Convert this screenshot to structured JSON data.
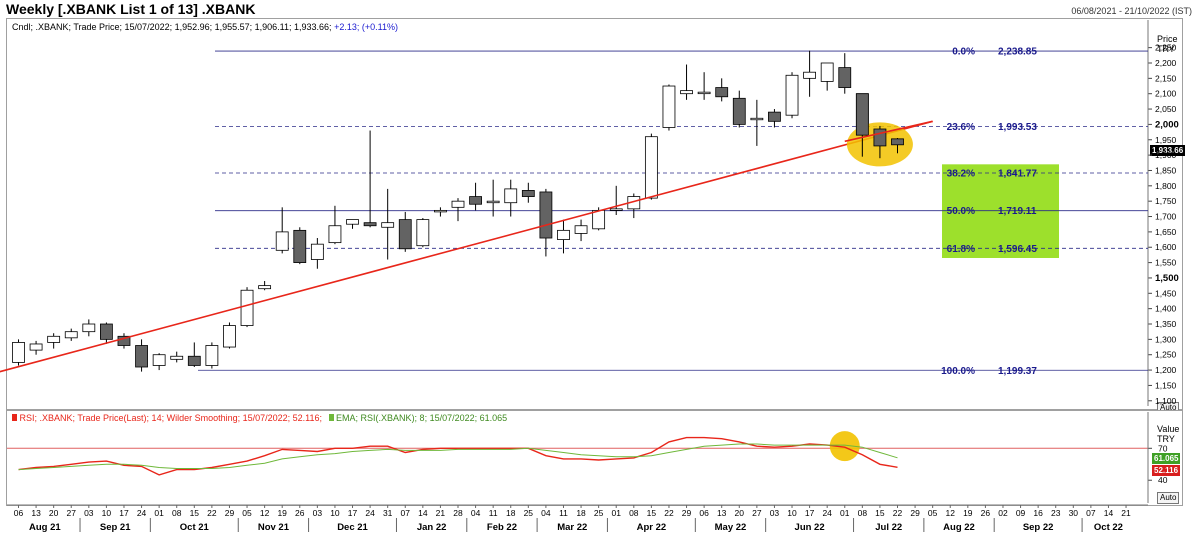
{
  "header": {
    "title": "Weekly [.XBANK List 1 of 13] .XBANK",
    "date_range": "06/08/2021 - 21/10/2022 (IST)"
  },
  "price_panel": {
    "legend_prefix": "Cndl; .XBANK; Trade Price; 15/07/2022; 1,952.96; 1,955.57; 1,906.11; 1,933.66;",
    "legend_change": "+2.13; (+0.11%)",
    "axis_title_line1": "Price",
    "axis_title_line2": "TRY",
    "current_price_label": "1,933.66",
    "auto_label": "Auto"
  },
  "rsi_panel": {
    "legend_rsi": "RSI; .XBANK; Trade Price(Last); 14; Wilder Smoothing; 15/07/2022; 52.116;",
    "legend_ema": "EMA; RSI(.XBANK); 8; 15/07/2022; 61.065",
    "axis_title_line1": "Value",
    "axis_title_line2": "TRY",
    "ema_value_label": "61.065",
    "rsi_value_label": "52.116",
    "auto_label": "Auto"
  },
  "colors": {
    "bull_candle": "#ffffff",
    "bear_candle": "#636363",
    "trendline": "#e8261a",
    "fib_label": "#1a1a8c",
    "fib_highlight": "#9de02c",
    "ellipse": "#f2c200",
    "rsi_line": "#e8261a",
    "ema_line": "#6fb83a",
    "rsi_ref_line": "#e06060"
  },
  "chart_data": [
    {
      "type": "candlestick",
      "title": "Weekly [.XBANK List 1 of 13] .XBANK",
      "ylabel": "Price TRY",
      "ylim": [
        1083,
        2340
      ],
      "y_ticks": [
        1100,
        1150,
        1200,
        1250,
        1300,
        1350,
        1400,
        1450,
        1500,
        1550,
        1600,
        1650,
        1700,
        1750,
        1800,
        1850,
        1900,
        1950,
        2000,
        2050,
        2100,
        2150,
        2200,
        2250
      ],
      "y_tick_labels": [
        "1,100",
        "1,150",
        "1,200",
        "1,250",
        "1,300",
        "1,350",
        "1,400",
        "1,450",
        "1,500",
        "1,550",
        "1,600",
        "1,650",
        "1,700",
        "1,750",
        "1,800",
        "1,850",
        "1,900",
        "1,950",
        "2,000",
        "2,050",
        "2,100",
        "2,150",
        "2,200",
        "2,250"
      ],
      "bold_y_ticks": [
        1500,
        2000
      ],
      "x_tick_labels": [
        "06",
        "13",
        "20",
        "27",
        "03",
        "10",
        "17",
        "24",
        "01",
        "08",
        "15",
        "22",
        "29",
        "05",
        "12",
        "19",
        "26",
        "03",
        "10",
        "17",
        "24",
        "31",
        "07",
        "14",
        "21",
        "28",
        "04",
        "11",
        "18",
        "25",
        "04",
        "11",
        "18",
        "25",
        "01",
        "08",
        "15",
        "22",
        "29",
        "06",
        "13",
        "20",
        "27",
        "03",
        "10",
        "17",
        "24",
        "01",
        "08",
        "15",
        "22",
        "29",
        "05",
        "12",
        "19",
        "26",
        "02",
        "09",
        "16",
        "23",
        "30",
        "07",
        "14",
        "21"
      ],
      "month_labels": [
        "Aug 21",
        "Sep 21",
        "Oct 21",
        "Nov 21",
        "Dec 21",
        "Jan 22",
        "Feb 22",
        "Mar 22",
        "Apr 22",
        "May 22",
        "Jun 22",
        "Jul 22",
        "Aug 22",
        "Sep 22",
        "Oct 22"
      ],
      "candles": [
        {
          "o": 1225,
          "h": 1300,
          "l": 1215,
          "c": 1290
        },
        {
          "o": 1265,
          "h": 1295,
          "l": 1250,
          "c": 1285
        },
        {
          "o": 1290,
          "h": 1320,
          "l": 1270,
          "c": 1310
        },
        {
          "o": 1305,
          "h": 1335,
          "l": 1295,
          "c": 1325
        },
        {
          "o": 1325,
          "h": 1365,
          "l": 1310,
          "c": 1350
        },
        {
          "o": 1350,
          "h": 1355,
          "l": 1285,
          "c": 1300
        },
        {
          "o": 1310,
          "h": 1320,
          "l": 1270,
          "c": 1280
        },
        {
          "o": 1280,
          "h": 1300,
          "l": 1195,
          "c": 1210
        },
        {
          "o": 1215,
          "h": 1255,
          "l": 1200,
          "c": 1250
        },
        {
          "o": 1235,
          "h": 1260,
          "l": 1225,
          "c": 1245
        },
        {
          "o": 1245,
          "h": 1290,
          "l": 1210,
          "c": 1215
        },
        {
          "o": 1215,
          "h": 1290,
          "l": 1205,
          "c": 1280
        },
        {
          "o": 1275,
          "h": 1355,
          "l": 1270,
          "c": 1345
        },
        {
          "o": 1345,
          "h": 1470,
          "l": 1340,
          "c": 1460
        },
        {
          "o": 1465,
          "h": 1490,
          "l": 1460,
          "c": 1475
        },
        {
          "o": 1590,
          "h": 1730,
          "l": 1580,
          "c": 1650
        },
        {
          "o": 1655,
          "h": 1665,
          "l": 1545,
          "c": 1550
        },
        {
          "o": 1560,
          "h": 1630,
          "l": 1530,
          "c": 1610
        },
        {
          "o": 1615,
          "h": 1735,
          "l": 1610,
          "c": 1670
        },
        {
          "o": 1675,
          "h": 1690,
          "l": 1660,
          "c": 1690
        },
        {
          "o": 1680,
          "h": 1980,
          "l": 1665,
          "c": 1670
        },
        {
          "o": 1665,
          "h": 1790,
          "l": 1560,
          "c": 1680
        },
        {
          "o": 1690,
          "h": 1715,
          "l": 1585,
          "c": 1595
        },
        {
          "o": 1605,
          "h": 1695,
          "l": 1600,
          "c": 1690
        },
        {
          "o": 1720,
          "h": 1730,
          "l": 1700,
          "c": 1720
        },
        {
          "o": 1730,
          "h": 1760,
          "l": 1685,
          "c": 1750
        },
        {
          "o": 1765,
          "h": 1810,
          "l": 1720,
          "c": 1740
        },
        {
          "o": 1745,
          "h": 1820,
          "l": 1700,
          "c": 1750
        },
        {
          "o": 1745,
          "h": 1820,
          "l": 1700,
          "c": 1790
        },
        {
          "o": 1785,
          "h": 1810,
          "l": 1745,
          "c": 1765
        },
        {
          "o": 1780,
          "h": 1790,
          "l": 1570,
          "c": 1630
        },
        {
          "o": 1625,
          "h": 1690,
          "l": 1580,
          "c": 1655
        },
        {
          "o": 1645,
          "h": 1690,
          "l": 1620,
          "c": 1670
        },
        {
          "o": 1660,
          "h": 1730,
          "l": 1655,
          "c": 1720
        },
        {
          "o": 1720,
          "h": 1800,
          "l": 1705,
          "c": 1725
        },
        {
          "o": 1725,
          "h": 1775,
          "l": 1695,
          "c": 1765
        },
        {
          "o": 1760,
          "h": 1970,
          "l": 1755,
          "c": 1960
        },
        {
          "o": 1990,
          "h": 2130,
          "l": 1980,
          "c": 2125
        },
        {
          "o": 2100,
          "h": 2195,
          "l": 2080,
          "c": 2110
        },
        {
          "o": 2105,
          "h": 2170,
          "l": 2080,
          "c": 2105
        },
        {
          "o": 2120,
          "h": 2150,
          "l": 2075,
          "c": 2090
        },
        {
          "o": 2085,
          "h": 2110,
          "l": 1990,
          "c": 2000
        },
        {
          "o": 2020,
          "h": 2080,
          "l": 1930,
          "c": 2020
        },
        {
          "o": 2040,
          "h": 2050,
          "l": 1990,
          "c": 2010
        },
        {
          "o": 2030,
          "h": 2170,
          "l": 2020,
          "c": 2160
        },
        {
          "o": 2150,
          "h": 2240,
          "l": 2090,
          "c": 2170
        },
        {
          "o": 2140,
          "h": 2200,
          "l": 2110,
          "c": 2200
        },
        {
          "o": 2185,
          "h": 2232,
          "l": 2100,
          "c": 2120
        },
        {
          "o": 2100,
          "h": 2100,
          "l": 1895,
          "c": 1965
        },
        {
          "o": 1985,
          "h": 1995,
          "l": 1890,
          "c": 1930
        },
        {
          "o": 1952.96,
          "h": 1955.57,
          "l": 1906.11,
          "c": 1933.66
        }
      ],
      "annotations": [
        {
          "type": "trendline",
          "from": {
            "candle": -3,
            "price": 1165
          },
          "to": {
            "candle": 52,
            "price": 2010
          }
        },
        {
          "type": "fib_level",
          "label": "0.0%",
          "value_label": "2,238.85",
          "price": 2238.85
        },
        {
          "type": "fib_level",
          "label": "23.6%",
          "value_label": "1,993.53",
          "price": 1993.53
        },
        {
          "type": "fib_level",
          "label": "38.2%",
          "value_label": "1,841.77",
          "price": 1841.77
        },
        {
          "type": "fib_level",
          "label": "50.0%",
          "value_label": "1,719.11",
          "price": 1719.11
        },
        {
          "type": "fib_level",
          "label": "61.8%",
          "value_label": "1,596.45",
          "price": 1596.45
        },
        {
          "type": "fib_level",
          "label": "100.0%",
          "value_label": "1,199.37",
          "price": 1199.37
        },
        {
          "type": "highlight_box",
          "from_price": 1565,
          "to_price": 1870
        },
        {
          "type": "ellipse",
          "center": {
            "candle": 49,
            "price": 1935
          }
        }
      ]
    },
    {
      "type": "line",
      "ylabel": "Value TRY",
      "ylim": [
        28,
        90
      ],
      "y_ticks": [
        40,
        70
      ],
      "y_tick_labels": [
        "40",
        "70"
      ],
      "reference_line": 70,
      "series": [
        {
          "name": "RSI",
          "values": [
            50,
            52,
            53,
            55,
            57,
            58,
            54,
            53,
            45,
            50,
            50,
            52,
            55,
            58,
            63,
            69,
            68,
            67,
            70,
            70,
            72,
            72,
            66,
            69,
            70,
            70,
            70,
            70,
            70,
            70,
            63,
            60,
            60,
            59,
            60,
            61,
            66,
            76,
            80,
            80,
            79,
            76,
            72,
            71,
            72,
            74,
            73,
            71,
            64,
            55,
            52.116
          ]
        },
        {
          "name": "EMA",
          "values": [
            50,
            51,
            52,
            53,
            54,
            55,
            55,
            54,
            52,
            51,
            51,
            51,
            52,
            54,
            56,
            60,
            62,
            64,
            65,
            67,
            68,
            69,
            68,
            68,
            68,
            69,
            69,
            69,
            69,
            70,
            68,
            66,
            64,
            63,
            62,
            62,
            63,
            66,
            69,
            72,
            73,
            74,
            74,
            73,
            73,
            73,
            73,
            73,
            71,
            66,
            61.065
          ]
        }
      ],
      "annotations": [
        {
          "type": "ellipse",
          "center": {
            "index": 47,
            "value": 72
          }
        }
      ]
    }
  ]
}
